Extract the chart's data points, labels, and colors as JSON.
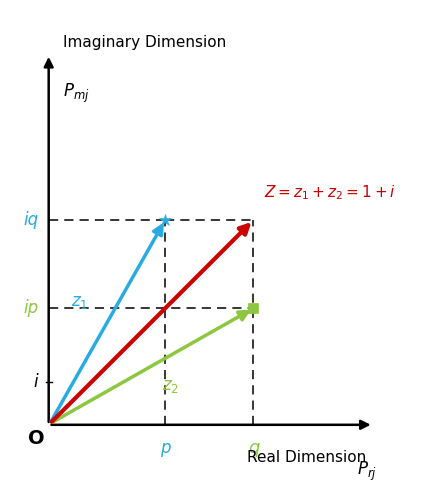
{
  "axis_label_x": "Real Dimension",
  "axis_label_x2": "$P_{rj}$",
  "axis_label_y": "Imaginary Dimension",
  "axis_label_y2": "$P_{mj}$",
  "origin_label": "O",
  "x_label_p": "p",
  "x_label_q": "q",
  "y_label_i": "i",
  "y_label_ip": "ip",
  "y_label_iq": "iq",
  "p_val": 0.33,
  "q_val": 0.58,
  "ip_val": 0.33,
  "iq_val": 0.58,
  "i_val": 0.12,
  "z1_color": "#29ABE2",
  "z2_color": "#8DC63F",
  "Z_color": "#CC0000",
  "z_annotation": "$Z = z_1 + z_2 = 1+i$",
  "z1_annotation": "$z_1$",
  "z2_annotation": "$z_2$",
  "figsize": [
    4.3,
    5.0
  ],
  "dpi": 100
}
